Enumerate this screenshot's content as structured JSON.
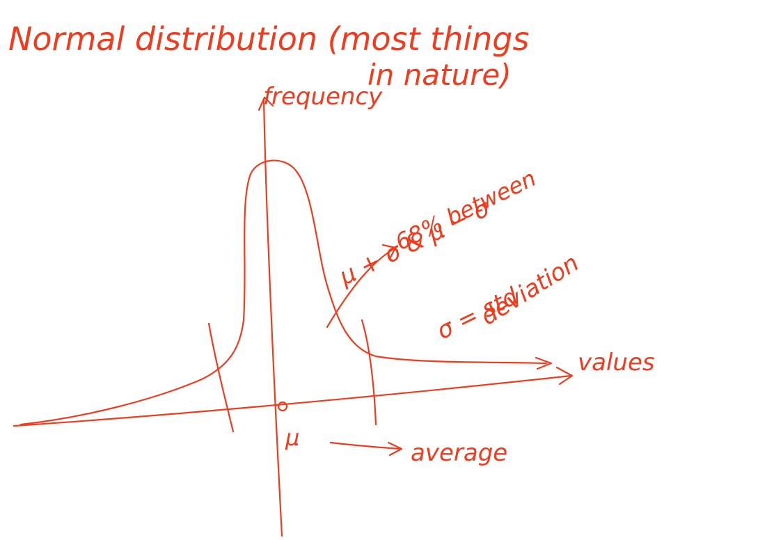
{
  "title": {
    "lines": [
      "Normal distribution (most things",
      "in nature)"
    ]
  },
  "axes": {
    "y_label": "frequency",
    "x_label": "values"
  },
  "annotations": {
    "range": [
      "68% between",
      "μ + σ & μ − σ"
    ],
    "sigma": [
      "σ = std",
      "deviation"
    ],
    "mean_symbol": "μ",
    "mean_label": "average"
  }
}
